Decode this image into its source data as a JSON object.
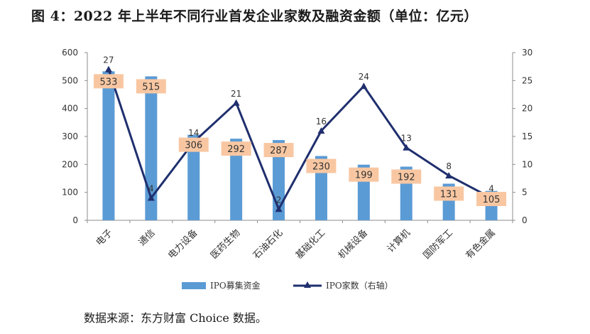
{
  "title": "图 4：2022 年上半年不同行业首发企业家数及融资金额（单位：亿元）",
  "source": "数据来源：东方财富 Choice 数据。",
  "colors": {
    "bar": "#5b9bd5",
    "line": "#1f2f6e",
    "label_box": "#f8c7a2",
    "axis": "#8c8c8c"
  },
  "chart_data": {
    "type": "bar+line",
    "categories": [
      "电子",
      "通信",
      "电力设备",
      "医药生物",
      "石油石化",
      "基础化工",
      "机械设备",
      "计算机",
      "国防军工",
      "有色金属"
    ],
    "series": [
      {
        "name": "IPO募集资金",
        "type": "bar",
        "axis": "left",
        "values": [
          533,
          515,
          306,
          292,
          287,
          230,
          199,
          192,
          131,
          105
        ]
      },
      {
        "name": "IPO家数（右轴）",
        "type": "line",
        "axis": "right",
        "values": [
          27,
          4,
          14,
          21,
          2,
          16,
          24,
          13,
          8,
          4
        ]
      }
    ],
    "y_left": {
      "min": 0,
      "max": 600,
      "ticks": [
        0,
        100,
        200,
        300,
        400,
        500,
        600
      ]
    },
    "y_right": {
      "min": 0,
      "max": 30,
      "ticks": [
        0,
        5,
        10,
        15,
        20,
        25,
        30
      ]
    },
    "legend_position": "bottom"
  }
}
